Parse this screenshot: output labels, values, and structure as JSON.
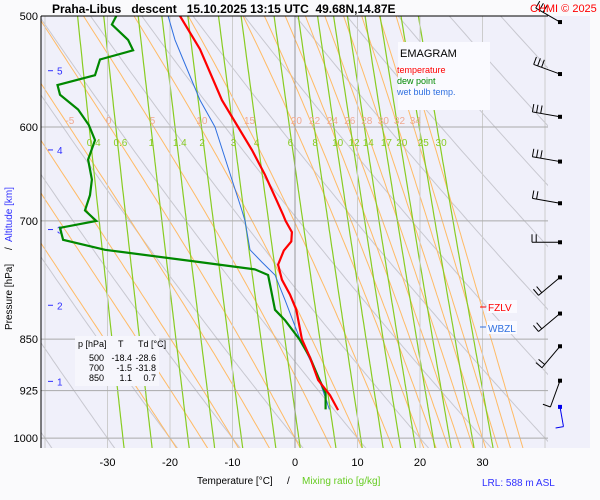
{
  "header": {
    "title": "Praha-Libus   descent   15.10.2025 13:15 UTC  49.68N,14.87E",
    "copyright": "CHMI © 2025"
  },
  "legend": {
    "title": "EMAGRAM",
    "temperature": "temperature",
    "dew_point": "dew point",
    "wet_bulb": "wet bulb temp."
  },
  "table": {
    "headers": [
      "p [hPa]",
      "T",
      "Td [°C]"
    ],
    "rows": [
      [
        "500",
        "-18.4",
        "-28.6"
      ],
      [
        "700",
        "-1.5",
        "-31.8"
      ],
      [
        "850",
        "1.1",
        "0.7"
      ]
    ]
  },
  "levels": {
    "fzlv": "FZLV",
    "wbzl": "WBZL"
  },
  "footer": {
    "lrl": "LRL: 588 m ASL"
  },
  "colors": {
    "temperature": "#ff0000",
    "dew_point": "#008800",
    "wet_bulb": "#3070e0",
    "mixing": "#88cc22",
    "moist": "#ffbb66",
    "dry": "#c8c8d0",
    "bg": "#f0f0fa"
  },
  "chart_data": {
    "type": "line",
    "title": "Praha-Libus descent 15.10.2025 13:15 UTC",
    "xlabel": "Temperature [°C]",
    "xlabel2": "Mixing ratio [g/kg]",
    "ylabel": "Pressure [hPa]",
    "ylabel2": "Altitude [km]",
    "xlim": [
      -40,
      41
    ],
    "ylim": [
      1040,
      500
    ],
    "xticks": [
      -30,
      -20,
      -10,
      0,
      10,
      20,
      30
    ],
    "yticks": [
      500,
      600,
      700,
      850,
      925,
      1000
    ],
    "altitude_ticks": [
      {
        "km": "5",
        "p": 547
      },
      {
        "km": "4",
        "p": 623
      },
      {
        "km": "3",
        "p": 710
      },
      {
        "km": "2",
        "p": 804
      },
      {
        "km": "1",
        "p": 911
      }
    ],
    "moist_adiabat_labels": [
      -5,
      0,
      5,
      10,
      15,
      20,
      22,
      24,
      26,
      28,
      30,
      32,
      34
    ],
    "mixing_ratio_labels": [
      0.4,
      0.6,
      1,
      1.4,
      2,
      3,
      4,
      6,
      8,
      10,
      12,
      14,
      17,
      20,
      25,
      30
    ],
    "series": [
      {
        "name": "temperature",
        "points": [
          [
            500,
            -18.4
          ],
          [
            528,
            -15.2
          ],
          [
            574,
            -11.7
          ],
          [
            600,
            -9.1
          ],
          [
            623,
            -6.9
          ],
          [
            649,
            -4.8
          ],
          [
            676,
            -3.0
          ],
          [
            693,
            -1.9
          ],
          [
            700,
            -1.5
          ],
          [
            713,
            -0.5
          ],
          [
            724,
            -0.6
          ],
          [
            735,
            -1.8
          ],
          [
            752,
            -2.7
          ],
          [
            771,
            -2.1
          ],
          [
            790,
            -0.8
          ],
          [
            810,
            0.2
          ],
          [
            850,
            1.1
          ],
          [
            876,
            2.4
          ],
          [
            909,
            3.7
          ],
          [
            932,
            5.6
          ],
          [
            955,
            6.9
          ]
        ]
      },
      {
        "name": "dew point",
        "points": [
          [
            500,
            -28.6
          ],
          [
            507,
            -29.3
          ],
          [
            520,
            -26.7
          ],
          [
            529,
            -25.9
          ],
          [
            537,
            -31.2
          ],
          [
            551,
            -32.0
          ],
          [
            560,
            -38.0
          ],
          [
            569,
            -37.6
          ],
          [
            583,
            -34.7
          ],
          [
            598,
            -33.0
          ],
          [
            613,
            -32.0
          ],
          [
            633,
            -33.1
          ],
          [
            654,
            -32.5
          ],
          [
            671,
            -32.8
          ],
          [
            688,
            -33.6
          ],
          [
            700,
            -31.8
          ],
          [
            708,
            -37.6
          ],
          [
            722,
            -37.1
          ],
          [
            734,
            -30.4
          ],
          [
            749,
            -15.2
          ],
          [
            758,
            -6.4
          ],
          [
            765,
            -4.3
          ],
          [
            777,
            -4.0
          ],
          [
            810,
            -3.2
          ],
          [
            824,
            -1.6
          ],
          [
            850,
            0.7
          ],
          [
            876,
            2.4
          ],
          [
            904,
            3.7
          ],
          [
            929,
            4.9
          ],
          [
            954,
            4.9
          ]
        ]
      },
      {
        "name": "wet bulb temp.",
        "points": [
          [
            500,
            -20.3
          ],
          [
            520,
            -19.2
          ],
          [
            537,
            -17.9
          ],
          [
            574,
            -15.2
          ],
          [
            600,
            -12.8
          ],
          [
            654,
            -10.1
          ],
          [
            688,
            -8.5
          ],
          [
            700,
            -8.0
          ],
          [
            734,
            -7.2
          ],
          [
            749,
            -5.3
          ],
          [
            765,
            -3.2
          ],
          [
            797,
            -1.6
          ],
          [
            850,
            0.8
          ],
          [
            904,
            3.7
          ],
          [
            954,
            5.5
          ]
        ]
      }
    ],
    "wind": [
      [
        505,
        300,
        25
      ],
      [
        550,
        290,
        30
      ],
      [
        590,
        280,
        25
      ],
      [
        635,
        280,
        25
      ],
      [
        680,
        280,
        20
      ],
      [
        725,
        270,
        20
      ],
      [
        768,
        230,
        15
      ],
      [
        815,
        230,
        15
      ],
      [
        860,
        220,
        15
      ],
      [
        910,
        200,
        10
      ],
      [
        950,
        170,
        5
      ]
    ]
  }
}
